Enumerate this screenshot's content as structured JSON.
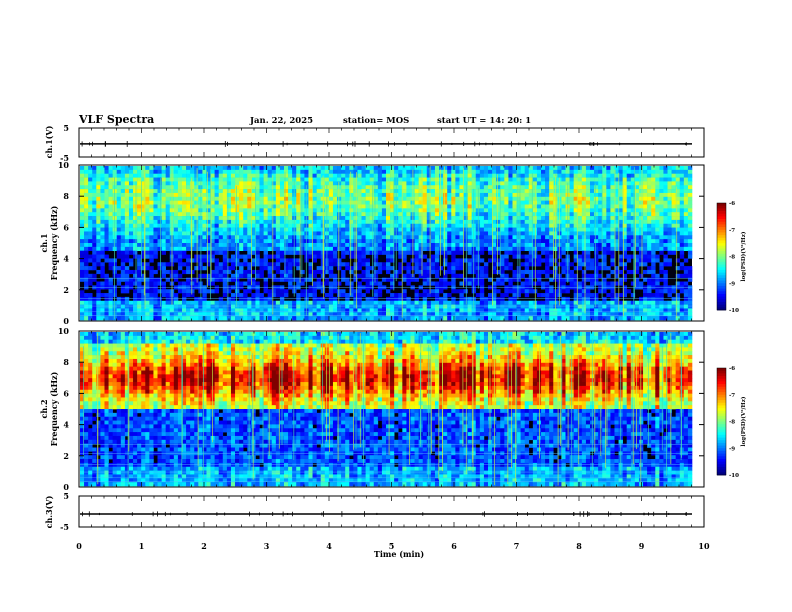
{
  "header": {
    "title": "VLF Spectra",
    "date": "Jan. 22, 2025",
    "station": "station= MOS",
    "start": "start UT =   14: 20: 1"
  },
  "chart_data": [
    {
      "type": "line",
      "panel": "ch1-waveform",
      "ylabel": "ch.1(V)",
      "ylim": [
        -5,
        5
      ],
      "yticks": [
        "5",
        "-5"
      ],
      "xlim": [
        0,
        10
      ],
      "series": [
        {
          "values_level": -0.5
        }
      ]
    },
    {
      "type": "heatmap",
      "panel": "ch1-spectrogram",
      "ylabel": "ch.1",
      "ylabel2": "Frequency (kHz)",
      "ylim": [
        0,
        10
      ],
      "yticks": [
        "0",
        "2",
        "4",
        "6",
        "8",
        "10"
      ],
      "xlim": [
        0,
        10
      ],
      "colorbar": {
        "label": "log(PSD)(V²/Hz)",
        "ticks": [
          "-6",
          "-7",
          "-8",
          "-9",
          "-10"
        ],
        "range": [
          -10,
          -6
        ]
      },
      "band_hint": "strong emission 4.5-10 kHz, weak below 4 kHz"
    },
    {
      "type": "heatmap",
      "panel": "ch2-spectrogram",
      "ylabel": "ch.2",
      "ylabel2": "Frequency (kHz)",
      "ylim": [
        0,
        10
      ],
      "yticks": [
        "0",
        "2",
        "4",
        "6",
        "8",
        "10"
      ],
      "xlim": [
        0,
        10
      ],
      "colorbar": {
        "label": "log(PSD)(V²/Hz)",
        "ticks": [
          "-6",
          "-7",
          "-8",
          "-9",
          "-10"
        ],
        "range": [
          -10,
          -6
        ]
      },
      "band_hint": "intense emission 5-9 kHz peaking near 7 kHz"
    },
    {
      "type": "line",
      "panel": "ch3-waveform",
      "ylabel": "ch.3(V)",
      "ylim": [
        -5,
        5
      ],
      "yticks": [
        "5",
        "-5"
      ],
      "xlim": [
        0,
        10
      ],
      "xlabel": "Time  (min)",
      "xticks": [
        "0",
        "1",
        "2",
        "3",
        "4",
        "5",
        "6",
        "7",
        "8",
        "9",
        "10"
      ],
      "series": [
        {
          "values_level": -0.8
        }
      ]
    }
  ]
}
